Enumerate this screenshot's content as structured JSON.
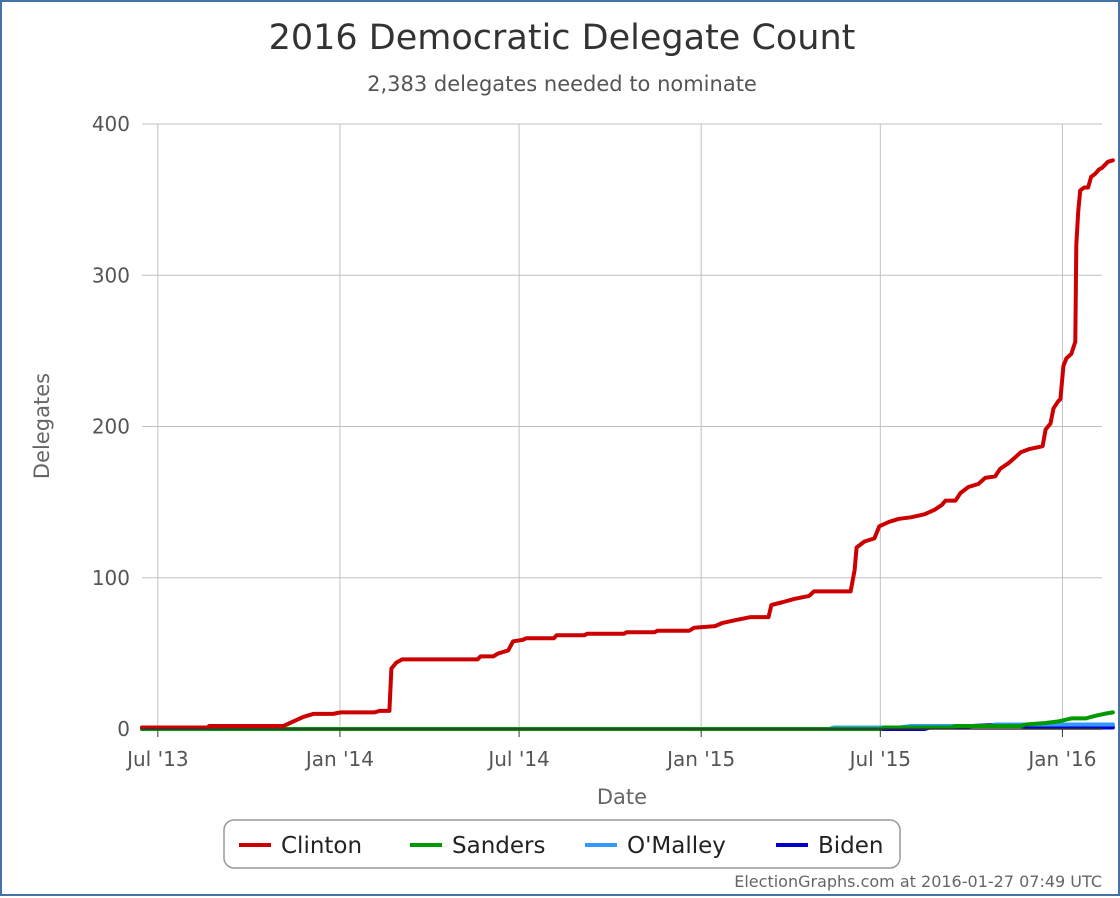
{
  "chart_data": {
    "type": "line",
    "title": "2016 Democratic Delegate Count",
    "subtitle": "2,383 delegates needed to nominate",
    "xlabel": "Date",
    "ylabel": "Delegates",
    "ylim": [
      0,
      400
    ],
    "yticks": [
      0,
      100,
      200,
      300,
      400
    ],
    "xlim": [
      "2013-06-15",
      "2016-02-10"
    ],
    "xticks": [
      {
        "date": "2013-07-01",
        "label": "Jul '13"
      },
      {
        "date": "2014-01-01",
        "label": "Jan '14"
      },
      {
        "date": "2014-07-01",
        "label": "Jul '14"
      },
      {
        "date": "2015-01-01",
        "label": "Jan '15"
      },
      {
        "date": "2015-07-01",
        "label": "Jul '15"
      },
      {
        "date": "2016-01-01",
        "label": "Jan '16"
      }
    ],
    "grid": true,
    "legend_position": "bottom",
    "series": [
      {
        "name": "Clinton",
        "color": "#CC0000",
        "points": [
          [
            "2013-06-15",
            1
          ],
          [
            "2013-08-20",
            1
          ],
          [
            "2013-08-22",
            2
          ],
          [
            "2013-11-05",
            2
          ],
          [
            "2013-11-15",
            5
          ],
          [
            "2013-11-25",
            8
          ],
          [
            "2013-12-05",
            10
          ],
          [
            "2013-12-25",
            10
          ],
          [
            "2014-01-02",
            11
          ],
          [
            "2014-02-05",
            11
          ],
          [
            "2014-02-10",
            12
          ],
          [
            "2014-02-20",
            12
          ],
          [
            "2014-02-22",
            40
          ],
          [
            "2014-02-27",
            44
          ],
          [
            "2014-03-05",
            46
          ],
          [
            "2014-05-20",
            46
          ],
          [
            "2014-05-23",
            48
          ],
          [
            "2014-06-05",
            48
          ],
          [
            "2014-06-10",
            50
          ],
          [
            "2014-06-20",
            52
          ],
          [
            "2014-06-25",
            58
          ],
          [
            "2014-07-05",
            59
          ],
          [
            "2014-07-08",
            60
          ],
          [
            "2014-08-05",
            60
          ],
          [
            "2014-08-08",
            62
          ],
          [
            "2014-09-05",
            62
          ],
          [
            "2014-09-08",
            63
          ],
          [
            "2014-10-15",
            63
          ],
          [
            "2014-10-18",
            64
          ],
          [
            "2014-11-15",
            64
          ],
          [
            "2014-11-18",
            65
          ],
          [
            "2014-12-20",
            65
          ],
          [
            "2014-12-25",
            67
          ],
          [
            "2015-01-15",
            68
          ],
          [
            "2015-01-22",
            70
          ],
          [
            "2015-02-05",
            72
          ],
          [
            "2015-02-20",
            74
          ],
          [
            "2015-03-10",
            74
          ],
          [
            "2015-03-13",
            82
          ],
          [
            "2015-03-25",
            84
          ],
          [
            "2015-04-05",
            86
          ],
          [
            "2015-04-20",
            88
          ],
          [
            "2015-04-25",
            91
          ],
          [
            "2015-05-20",
            91
          ],
          [
            "2015-06-01",
            91
          ],
          [
            "2015-06-05",
            105
          ],
          [
            "2015-06-07",
            120
          ],
          [
            "2015-06-15",
            124
          ],
          [
            "2015-06-25",
            126
          ],
          [
            "2015-06-30",
            134
          ],
          [
            "2015-07-10",
            137
          ],
          [
            "2015-07-20",
            139
          ],
          [
            "2015-08-01",
            140
          ],
          [
            "2015-08-15",
            142
          ],
          [
            "2015-08-25",
            145
          ],
          [
            "2015-09-01",
            148
          ],
          [
            "2015-09-05",
            151
          ],
          [
            "2015-09-15",
            151
          ],
          [
            "2015-09-20",
            156
          ],
          [
            "2015-09-28",
            160
          ],
          [
            "2015-10-08",
            162
          ],
          [
            "2015-10-15",
            166
          ],
          [
            "2015-10-25",
            167
          ],
          [
            "2015-10-30",
            172
          ],
          [
            "2015-11-08",
            176
          ],
          [
            "2015-11-15",
            180
          ],
          [
            "2015-11-20",
            183
          ],
          [
            "2015-11-28",
            185
          ],
          [
            "2015-12-05",
            186
          ],
          [
            "2015-12-12",
            187
          ],
          [
            "2015-12-15",
            198
          ],
          [
            "2015-12-20",
            202
          ],
          [
            "2015-12-23",
            212
          ],
          [
            "2015-12-28",
            217
          ],
          [
            "2015-12-30",
            218
          ],
          [
            "2016-01-02",
            240
          ],
          [
            "2016-01-05",
            245
          ],
          [
            "2016-01-10",
            248
          ],
          [
            "2016-01-12",
            252
          ],
          [
            "2016-01-14",
            256
          ],
          [
            "2016-01-15",
            320
          ],
          [
            "2016-01-17",
            342
          ],
          [
            "2016-01-19",
            356
          ],
          [
            "2016-01-23",
            358
          ],
          [
            "2016-01-27",
            358
          ],
          [
            "2016-01-30",
            365
          ],
          [
            "2016-02-03",
            367
          ],
          [
            "2016-02-07",
            370
          ],
          [
            "2016-02-10",
            371
          ],
          [
            "2016-02-13",
            373
          ],
          [
            "2016-02-16",
            375
          ],
          [
            "2016-02-21",
            376
          ]
        ]
      },
      {
        "name": "Sanders",
        "color": "#009900",
        "points": [
          [
            "2013-06-15",
            0
          ],
          [
            "2015-07-01",
            0
          ],
          [
            "2015-07-05",
            1
          ],
          [
            "2015-09-10",
            1
          ],
          [
            "2015-09-15",
            2
          ],
          [
            "2015-11-20",
            2
          ],
          [
            "2015-11-25",
            3
          ],
          [
            "2015-12-15",
            4
          ],
          [
            "2015-12-28",
            5
          ],
          [
            "2016-01-10",
            7
          ],
          [
            "2016-01-25",
            7
          ],
          [
            "2016-01-30",
            8
          ],
          [
            "2016-02-05",
            9
          ],
          [
            "2016-02-12",
            10
          ],
          [
            "2016-02-21",
            11
          ]
        ]
      },
      {
        "name": "O'Malley",
        "color": "#3399FF",
        "points": [
          [
            "2013-06-15",
            0
          ],
          [
            "2015-05-10",
            0
          ],
          [
            "2015-05-15",
            1
          ],
          [
            "2015-07-20",
            1
          ],
          [
            "2015-08-01",
            2
          ],
          [
            "2015-10-20",
            2
          ],
          [
            "2015-10-25",
            3
          ],
          [
            "2016-02-21",
            3
          ]
        ]
      },
      {
        "name": "Biden",
        "color": "#0000CC",
        "points": [
          [
            "2013-06-15",
            0
          ],
          [
            "2015-08-15",
            0
          ],
          [
            "2015-08-20",
            1
          ],
          [
            "2015-09-25",
            1
          ],
          [
            "2015-10-01",
            2
          ],
          [
            "2015-11-05",
            3
          ],
          [
            "2015-11-15",
            3
          ],
          [
            "2015-11-20",
            2
          ],
          [
            "2015-12-01",
            1
          ],
          [
            "2016-02-21",
            1
          ]
        ]
      }
    ]
  },
  "credit": "ElectionGraphs.com at 2016-01-27 07:49 UTC"
}
